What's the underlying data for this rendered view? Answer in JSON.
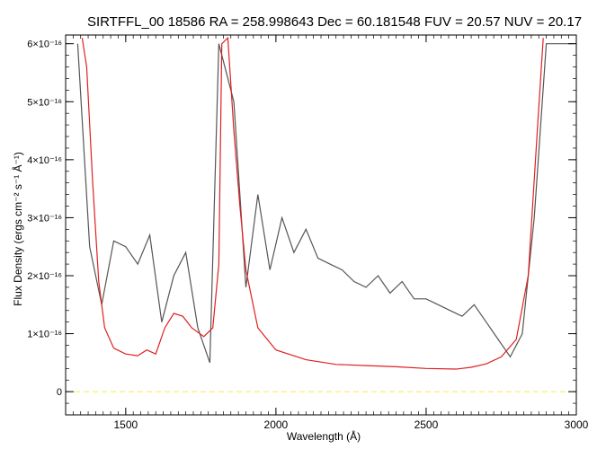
{
  "chart_data": {
    "type": "line",
    "title": "SIRTFFL_00 18586 RA = 258.998643 Dec =  60.181548 FUV = 20.57 NUV = 20.17",
    "xlabel": "Wavelength (Å)",
    "ylabel": "Flux Density (ergs cm⁻² s⁻¹ Å⁻¹)",
    "xlim": [
      1300,
      3000
    ],
    "ylim": [
      -4e-17,
      6.15e-16
    ],
    "xticks": [
      {
        "value": 1500,
        "label": "1500"
      },
      {
        "value": 2000,
        "label": "2000"
      },
      {
        "value": 2500,
        "label": "2500"
      },
      {
        "value": 3000,
        "label": "3000"
      }
    ],
    "yticks": [
      {
        "value": 0,
        "label": "0"
      },
      {
        "value": 1e-16,
        "label": "1×10⁻¹⁶"
      },
      {
        "value": 2e-16,
        "label": "2×10⁻¹⁶"
      },
      {
        "value": 3e-16,
        "label": "3×10⁻¹⁶"
      },
      {
        "value": 4e-16,
        "label": "4×10⁻¹⁶"
      },
      {
        "value": 5e-16,
        "label": "5×10⁻¹⁶"
      },
      {
        "value": 6e-16,
        "label": "6×10⁻¹⁶"
      }
    ],
    "series": [
      {
        "color": "#555555",
        "x": [
          1340,
          1380,
          1420,
          1460,
          1500,
          1540,
          1580,
          1620,
          1660,
          1700,
          1740,
          1780,
          1810,
          1860,
          1900,
          1940,
          1980,
          2020,
          2060,
          2100,
          2140,
          2180,
          2220,
          2260,
          2300,
          2340,
          2380,
          2420,
          2460,
          2500,
          2540,
          2580,
          2620,
          2660,
          2700,
          2740,
          2780,
          2820,
          2860,
          2900,
          2950,
          2990
        ],
        "y": [
          6e-16,
          2.5e-16,
          1.5e-16,
          2.6e-16,
          2.5e-16,
          2.2e-16,
          2.7e-16,
          1.2e-16,
          2e-16,
          2.4e-16,
          1.1e-16,
          5e-17,
          6e-16,
          5e-16,
          1.8e-16,
          3.4e-16,
          2.1e-16,
          3e-16,
          2.4e-16,
          2.8e-16,
          2.3e-16,
          2.2e-16,
          2.1e-16,
          1.9e-16,
          1.8e-16,
          2e-16,
          1.7e-16,
          1.9e-16,
          1.6e-16,
          1.6e-16,
          1.5e-16,
          1.4e-16,
          1.3e-16,
          1.5e-16,
          1.2e-16,
          9e-17,
          6e-17,
          1e-16,
          3e-16,
          6e-16,
          6e-16,
          6e-16
        ]
      },
      {
        "color": "#e02020",
        "x": [
          1355,
          1370,
          1390,
          1410,
          1430,
          1460,
          1500,
          1540,
          1570,
          1600,
          1630,
          1660,
          1690,
          1720,
          1760,
          1790,
          1810,
          1820,
          1840,
          1860,
          1880,
          1900,
          1940,
          2000,
          2100,
          2200,
          2300,
          2400,
          2500,
          2600,
          2650,
          2700,
          2750,
          2800,
          2840,
          2870,
          2890
        ],
        "y": [
          6.1e-16,
          5.6e-16,
          3.6e-16,
          1.9e-16,
          1.1e-16,
          7.5e-17,
          6.5e-17,
          6.2e-17,
          7.2e-17,
          6.5e-17,
          1.1e-16,
          1.35e-16,
          1.3e-16,
          1.1e-16,
          9.5e-17,
          1.1e-16,
          2.2e-16,
          6e-16,
          6.1e-16,
          4.5e-16,
          3.2e-16,
          2.1e-16,
          1.1e-16,
          7.2e-17,
          5.5e-17,
          4.7e-17,
          4.5e-17,
          4.3e-17,
          4e-17,
          3.9e-17,
          4.2e-17,
          4.8e-17,
          6e-17,
          9e-17,
          2e-16,
          4.5e-16,
          6.1e-16
        ]
      },
      {
        "color": "#f0f060",
        "x": [
          1300,
          3000
        ],
        "y": [
          0,
          0
        ]
      }
    ],
    "grid": false,
    "legend": "none"
  }
}
